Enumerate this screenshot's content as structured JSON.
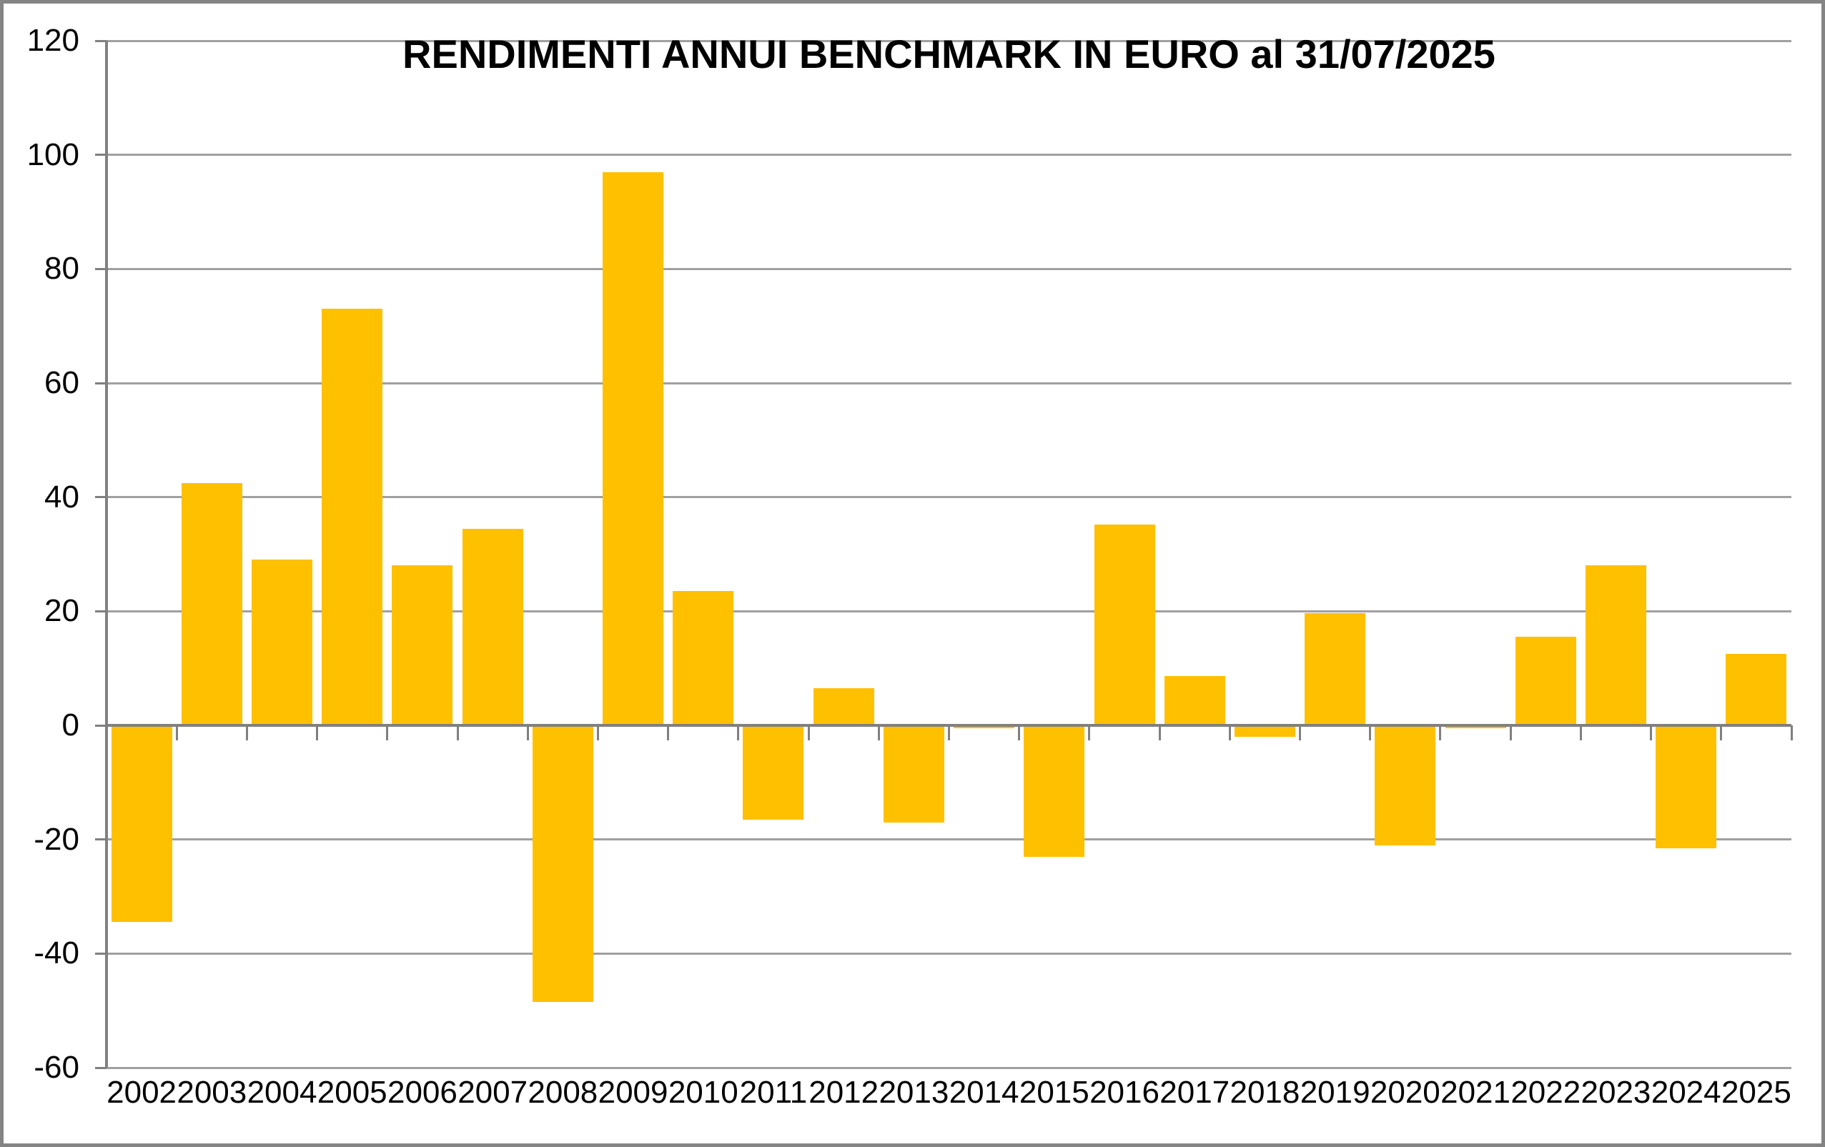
{
  "chart_data": {
    "type": "bar",
    "title": "RENDIMENTI ANNUI BENCHMARK IN EURO al 31/07/2025",
    "categories": [
      "2002",
      "2003",
      "2004",
      "2005",
      "2006",
      "2007",
      "2008",
      "2009",
      "2010",
      "2011",
      "2012",
      "2013",
      "2014",
      "2015",
      "2016",
      "2017",
      "2018",
      "2019",
      "2020",
      "2021",
      "2022",
      "2023",
      "2024",
      "2025"
    ],
    "values": [
      -34.5,
      42.5,
      29,
      73,
      28,
      34.5,
      -48.5,
      97,
      23.5,
      -16.5,
      6.5,
      -17,
      -0.5,
      -23,
      35.2,
      8.7,
      -2,
      19.7,
      -21,
      -0.5,
      15.5,
      28,
      -21.5,
      12.5
    ],
    "xlabel": "",
    "ylabel": "",
    "ylim": [
      -60,
      120
    ],
    "ytick_step": 20,
    "ytick_labels": [
      "120",
      "100",
      "80",
      "60",
      "40",
      "20",
      "0",
      "-20",
      "-40",
      "-60"
    ],
    "grid": true,
    "legend": "none",
    "bar_color": "#FFC000",
    "axis_color": "#808080",
    "gridline_color": "#A0A0A0",
    "text_color": "#000000",
    "background_color": "#FFFFFF"
  }
}
